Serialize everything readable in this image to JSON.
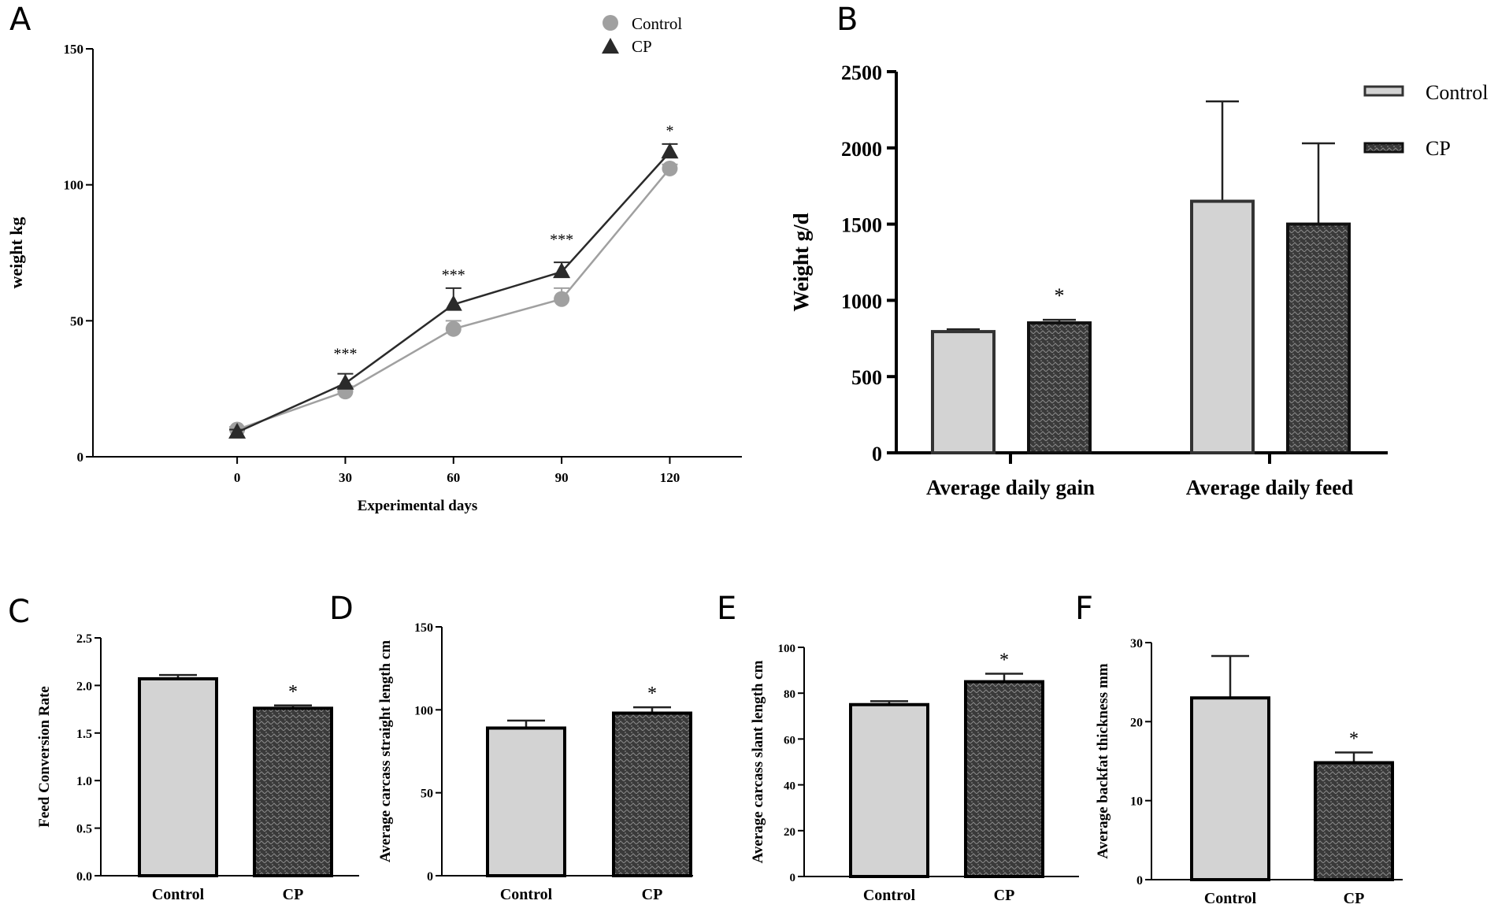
{
  "colors": {
    "control": "#d3d3d3",
    "cp": "#3a3a3a",
    "grey_line": "#a0a0a0",
    "dark_line": "#2a2a2a"
  },
  "panels": [
    "A",
    "B",
    "C",
    "D",
    "E",
    "F"
  ],
  "chart_data": [
    {
      "id": "A",
      "type": "line",
      "title": "",
      "xlabel": "Experimental days",
      "ylabel": "weight kg",
      "x": [
        0,
        30,
        60,
        90,
        120
      ],
      "xlim": [
        -40,
        140
      ],
      "ylim": [
        0,
        150
      ],
      "yticks": [
        0,
        50,
        100,
        150
      ],
      "series": [
        {
          "name": "Control",
          "marker": "circle",
          "values": [
            10,
            24,
            47,
            58,
            106
          ],
          "errors": [
            1,
            2,
            3,
            4,
            1.5
          ]
        },
        {
          "name": "CP",
          "marker": "triangle",
          "values": [
            9,
            27,
            56,
            68,
            112
          ],
          "errors": [
            1,
            3.5,
            6,
            3.5,
            3
          ]
        }
      ],
      "annotations": [
        {
          "x": 30,
          "y": 36,
          "text": "***"
        },
        {
          "x": 60,
          "y": 65,
          "text": "***"
        },
        {
          "x": 90,
          "y": 78,
          "text": "***"
        },
        {
          "x": 120,
          "y": 118,
          "text": "*"
        }
      ],
      "legend": "top"
    },
    {
      "id": "B",
      "type": "bar",
      "title": "",
      "xlabel": "",
      "ylabel": "Weight  g/d",
      "categories": [
        "Average daily gain",
        "Average daily feed"
      ],
      "ylim": [
        0,
        2500
      ],
      "yticks": [
        0,
        500,
        1000,
        1500,
        2000,
        2500
      ],
      "series": [
        {
          "name": "Control",
          "values": [
            795,
            1650
          ],
          "errors": [
            15,
            655
          ]
        },
        {
          "name": "CP",
          "values": [
            852,
            1500
          ],
          "errors": [
            20,
            530
          ]
        }
      ],
      "significance": [
        "*",
        ""
      ],
      "legend": "top-right"
    },
    {
      "id": "C",
      "type": "bar",
      "title": "",
      "xlabel": "",
      "ylabel": "Feed Conversion Rate",
      "categories": [
        "Control",
        "CP"
      ],
      "ylim": [
        0,
        2.5
      ],
      "yticks": [
        0.0,
        0.5,
        1.0,
        1.5,
        2.0,
        2.5
      ],
      "ytick_labels": [
        "0.0",
        "0.5",
        "1.0",
        "1.5",
        "2.0",
        "2.5"
      ],
      "values": [
        2.07,
        1.76
      ],
      "errors": [
        0.04,
        0.03
      ],
      "significance": [
        "",
        "*"
      ]
    },
    {
      "id": "D",
      "type": "bar",
      "title": "",
      "xlabel": "",
      "ylabel": "Average carcass straight length cm",
      "categories": [
        "Control",
        "CP"
      ],
      "ylim": [
        0,
        150
      ],
      "yticks": [
        0,
        50,
        100,
        150
      ],
      "values": [
        89,
        98
      ],
      "errors": [
        4.5,
        3.5
      ],
      "significance": [
        "",
        "*"
      ]
    },
    {
      "id": "E",
      "type": "bar",
      "title": "",
      "xlabel": "",
      "ylabel": "Average carcass slant length  cm",
      "categories": [
        "Control",
        "CP"
      ],
      "ylim": [
        0,
        100
      ],
      "yticks": [
        0,
        20,
        40,
        60,
        80,
        100
      ],
      "values": [
        75,
        85
      ],
      "errors": [
        1.5,
        3.5
      ],
      "significance": [
        "",
        "*"
      ]
    },
    {
      "id": "F",
      "type": "bar",
      "title": "",
      "xlabel": "",
      "ylabel": "Average backfat thickness  mm",
      "categories": [
        "Control",
        "CP"
      ],
      "ylim": [
        0,
        30
      ],
      "yticks": [
        0,
        10,
        20,
        30
      ],
      "values": [
        23,
        14.8
      ],
      "errors": [
        5.3,
        1.3
      ],
      "significance": [
        "",
        "*"
      ]
    }
  ]
}
